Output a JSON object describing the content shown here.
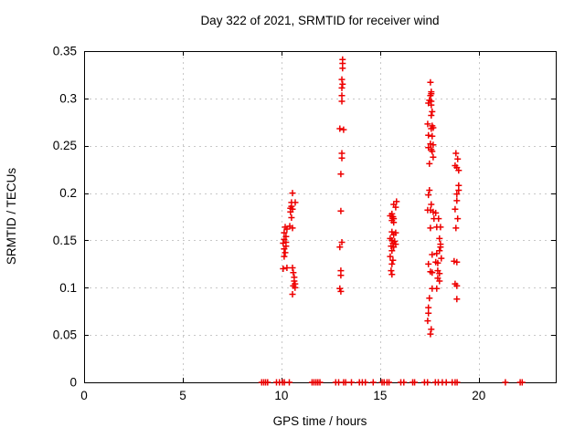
{
  "window": {
    "background": "#ffffff"
  },
  "chart_data": {
    "type": "scatter",
    "title": "Day 322 of 2021, SRMTID for receiver wind",
    "xlabel": "GPS time / hours",
    "ylabel": "SRMTID / TECUs",
    "xlim": [
      0,
      23.9
    ],
    "ylim": [
      0,
      0.35
    ],
    "xticks": {
      "values": [
        0,
        5,
        10,
        15,
        20
      ],
      "labels": [
        "0",
        "5",
        "10",
        "15",
        "20"
      ]
    },
    "yticks": {
      "values": [
        0,
        0.05,
        0.1,
        0.15,
        0.2,
        0.25,
        0.3,
        0.35
      ],
      "labels": [
        "0",
        "0.05",
        "0.1",
        "0.15",
        "0.2",
        "0.25",
        "0.3",
        "0.35"
      ]
    },
    "grid": true,
    "grid_color": "#c8c8c8",
    "axis_color": "#000000",
    "legend_position": "none",
    "marker": {
      "shape": "plus",
      "color": "#ee0000",
      "size": 7
    },
    "series": [
      {
        "name": "SRMTID",
        "points": [
          [
            10.56,
            0.2
          ],
          [
            10.51,
            0.19
          ],
          [
            10.7,
            0.19
          ],
          [
            10.51,
            0.186
          ],
          [
            10.46,
            0.184
          ],
          [
            10.56,
            0.183
          ],
          [
            10.46,
            0.18
          ],
          [
            10.51,
            0.174
          ],
          [
            10.42,
            0.165
          ],
          [
            10.19,
            0.164
          ],
          [
            10.56,
            0.163
          ],
          [
            10.28,
            0.162
          ],
          [
            10.14,
            0.158
          ],
          [
            10.23,
            0.154
          ],
          [
            10.14,
            0.151
          ],
          [
            10.23,
            0.148
          ],
          [
            10.09,
            0.147
          ],
          [
            10.23,
            0.144
          ],
          [
            10.14,
            0.141
          ],
          [
            10.19,
            0.137
          ],
          [
            10.14,
            0.133
          ],
          [
            10.28,
            0.121
          ],
          [
            10.56,
            0.121
          ],
          [
            10.09,
            0.12
          ],
          [
            10.6,
            0.116
          ],
          [
            10.65,
            0.111
          ],
          [
            10.65,
            0.107
          ],
          [
            10.69,
            0.104
          ],
          [
            10.6,
            0.102
          ],
          [
            10.69,
            0.1
          ],
          [
            10.56,
            0.093
          ],
          [
            13.1,
            0.341
          ],
          [
            13.1,
            0.337
          ],
          [
            13.1,
            0.332
          ],
          [
            13.06,
            0.32
          ],
          [
            13.1,
            0.315
          ],
          [
            13.06,
            0.311
          ],
          [
            13.06,
            0.303
          ],
          [
            13.06,
            0.297
          ],
          [
            12.96,
            0.268
          ],
          [
            13.15,
            0.267
          ],
          [
            13.06,
            0.242
          ],
          [
            13.06,
            0.237
          ],
          [
            13.01,
            0.22
          ],
          [
            13.01,
            0.181
          ],
          [
            13.06,
            0.148
          ],
          [
            12.96,
            0.143
          ],
          [
            13.01,
            0.118
          ],
          [
            13.01,
            0.113
          ],
          [
            12.96,
            0.099
          ],
          [
            13.01,
            0.096
          ],
          [
            15.83,
            0.191
          ],
          [
            15.69,
            0.188
          ],
          [
            15.79,
            0.185
          ],
          [
            15.6,
            0.178
          ],
          [
            15.51,
            0.176
          ],
          [
            15.65,
            0.175
          ],
          [
            15.69,
            0.173
          ],
          [
            15.6,
            0.171
          ],
          [
            15.69,
            0.169
          ],
          [
            15.6,
            0.159
          ],
          [
            15.79,
            0.158
          ],
          [
            15.69,
            0.156
          ],
          [
            15.51,
            0.152
          ],
          [
            15.6,
            0.15
          ],
          [
            15.74,
            0.149
          ],
          [
            15.65,
            0.147
          ],
          [
            15.79,
            0.146
          ],
          [
            15.56,
            0.144
          ],
          [
            15.69,
            0.143
          ],
          [
            15.6,
            0.139
          ],
          [
            15.51,
            0.133
          ],
          [
            15.65,
            0.129
          ],
          [
            15.6,
            0.125
          ],
          [
            15.56,
            0.118
          ],
          [
            15.6,
            0.114
          ],
          [
            17.55,
            0.317
          ],
          [
            17.59,
            0.307
          ],
          [
            17.59,
            0.305
          ],
          [
            17.55,
            0.303
          ],
          [
            17.5,
            0.298
          ],
          [
            17.59,
            0.297
          ],
          [
            17.45,
            0.295
          ],
          [
            17.59,
            0.293
          ],
          [
            17.64,
            0.286
          ],
          [
            17.59,
            0.282
          ],
          [
            17.41,
            0.273
          ],
          [
            17.64,
            0.271
          ],
          [
            17.69,
            0.269
          ],
          [
            17.59,
            0.268
          ],
          [
            17.45,
            0.261
          ],
          [
            17.64,
            0.26
          ],
          [
            17.55,
            0.252
          ],
          [
            17.69,
            0.251
          ],
          [
            17.45,
            0.248
          ],
          [
            17.59,
            0.246
          ],
          [
            17.64,
            0.244
          ],
          [
            17.69,
            0.238
          ],
          [
            17.5,
            0.231
          ],
          [
            17.5,
            0.203
          ],
          [
            17.45,
            0.198
          ],
          [
            17.59,
            0.188
          ],
          [
            17.41,
            0.182
          ],
          [
            17.55,
            0.182
          ],
          [
            17.69,
            0.18
          ],
          [
            17.82,
            0.179
          ],
          [
            17.73,
            0.173
          ],
          [
            17.96,
            0.173
          ],
          [
            17.87,
            0.164
          ],
          [
            18.06,
            0.164
          ],
          [
            17.55,
            0.163
          ],
          [
            18.01,
            0.152
          ],
          [
            18.06,
            0.146
          ],
          [
            18.06,
            0.143
          ],
          [
            18.01,
            0.139
          ],
          [
            17.87,
            0.136
          ],
          [
            17.64,
            0.135
          ],
          [
            18.1,
            0.131
          ],
          [
            17.82,
            0.127
          ],
          [
            17.92,
            0.126
          ],
          [
            17.45,
            0.125
          ],
          [
            17.92,
            0.118
          ],
          [
            17.55,
            0.117
          ],
          [
            17.64,
            0.116
          ],
          [
            18.01,
            0.115
          ],
          [
            17.92,
            0.11
          ],
          [
            18.01,
            0.107
          ],
          [
            17.64,
            0.099
          ],
          [
            17.87,
            0.099
          ],
          [
            17.5,
            0.089
          ],
          [
            17.45,
            0.079
          ],
          [
            17.45,
            0.073
          ],
          [
            17.41,
            0.065
          ],
          [
            17.59,
            0.056
          ],
          [
            17.55,
            0.051
          ],
          [
            18.84,
            0.242
          ],
          [
            18.93,
            0.236
          ],
          [
            18.8,
            0.229
          ],
          [
            18.89,
            0.227
          ],
          [
            18.98,
            0.224
          ],
          [
            18.98,
            0.208
          ],
          [
            18.98,
            0.203
          ],
          [
            18.89,
            0.199
          ],
          [
            18.89,
            0.192
          ],
          [
            18.8,
            0.183
          ],
          [
            18.93,
            0.173
          ],
          [
            18.84,
            0.163
          ],
          [
            18.75,
            0.128
          ],
          [
            18.89,
            0.127
          ],
          [
            18.8,
            0.104
          ],
          [
            18.89,
            0.102
          ],
          [
            18.89,
            0.088
          ],
          [
            9.0,
            0
          ],
          [
            9.1,
            0
          ],
          [
            9.2,
            0
          ],
          [
            9.3,
            0
          ],
          [
            9.75,
            0
          ],
          [
            9.9,
            0
          ],
          [
            10.05,
            0
          ],
          [
            10.15,
            0
          ],
          [
            10.4,
            0
          ],
          [
            11.55,
            0
          ],
          [
            11.65,
            0
          ],
          [
            11.75,
            0
          ],
          [
            11.85,
            0
          ],
          [
            11.95,
            0
          ],
          [
            12.75,
            0
          ],
          [
            12.9,
            0
          ],
          [
            13.15,
            0
          ],
          [
            13.25,
            0
          ],
          [
            13.55,
            0
          ],
          [
            13.95,
            0
          ],
          [
            14.1,
            0
          ],
          [
            14.25,
            0
          ],
          [
            14.65,
            0
          ],
          [
            15.1,
            0
          ],
          [
            15.2,
            0
          ],
          [
            15.35,
            0
          ],
          [
            15.45,
            0
          ],
          [
            16.05,
            0
          ],
          [
            16.2,
            0
          ],
          [
            16.65,
            0
          ],
          [
            16.75,
            0
          ],
          [
            17.25,
            0
          ],
          [
            17.4,
            0
          ],
          [
            17.8,
            0
          ],
          [
            17.95,
            0
          ],
          [
            18.15,
            0
          ],
          [
            18.35,
            0
          ],
          [
            18.65,
            0
          ],
          [
            18.8,
            0
          ],
          [
            18.9,
            0
          ],
          [
            21.35,
            0
          ],
          [
            22.1,
            0
          ],
          [
            22.2,
            0
          ]
        ]
      }
    ]
  }
}
